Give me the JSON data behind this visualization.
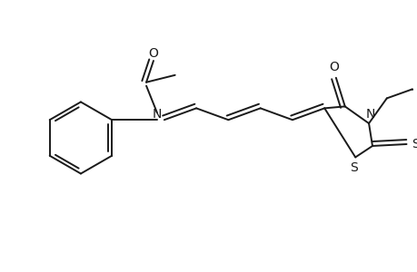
{
  "bg_color": "#ffffff",
  "line_color": "#1a1a1a",
  "line_width": 1.4,
  "figsize": [
    4.6,
    3.0
  ],
  "dpi": 100,
  "xlim": [
    0,
    460
  ],
  "ylim": [
    0,
    300
  ]
}
